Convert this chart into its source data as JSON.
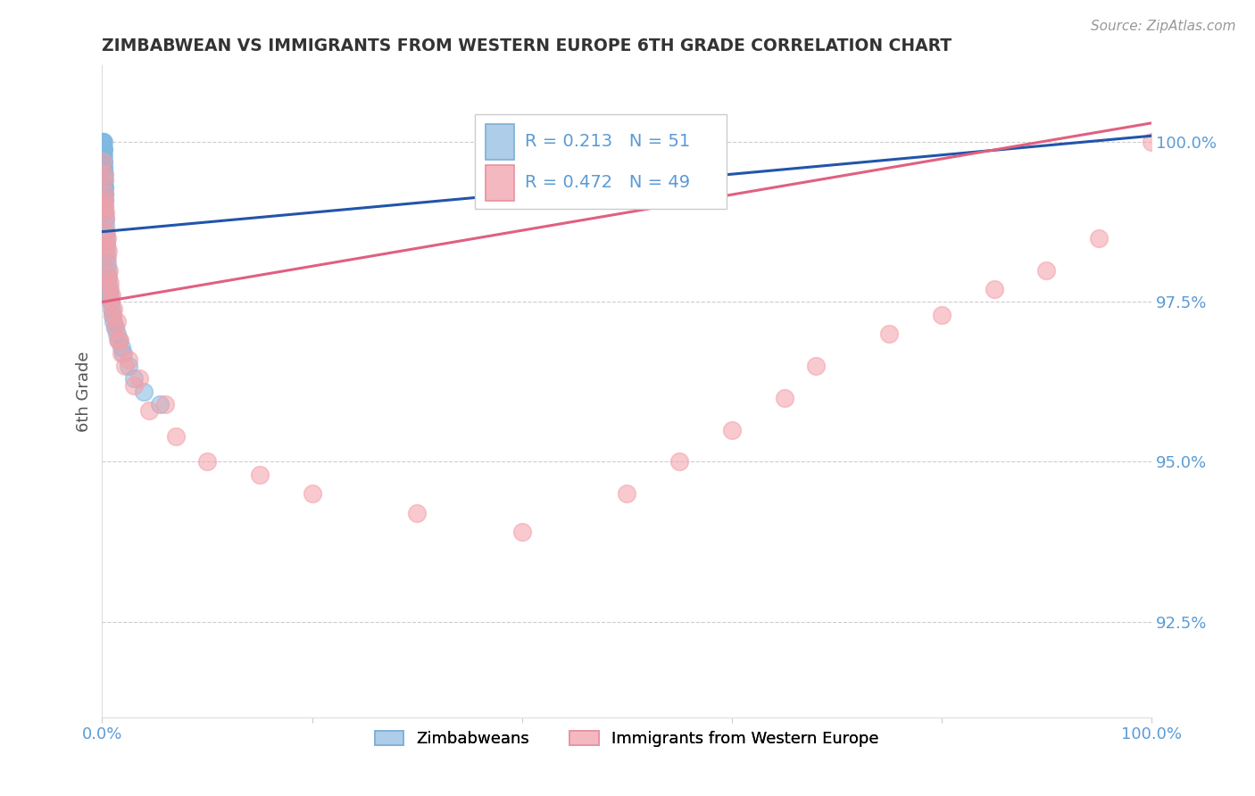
{
  "title": "ZIMBABWEAN VS IMMIGRANTS FROM WESTERN EUROPE 6TH GRADE CORRELATION CHART",
  "source": "Source: ZipAtlas.com",
  "ylabel_label": "6th Grade",
  "xlim": [
    0.0,
    100.0
  ],
  "ylim": [
    91.0,
    101.2
  ],
  "yticks": [
    92.5,
    95.0,
    97.5,
    100.0
  ],
  "ytick_labels": [
    "92.5%",
    "95.0%",
    "97.5%",
    "100.0%"
  ],
  "xtick_positions": [
    0.0,
    20.0,
    40.0,
    60.0,
    80.0,
    100.0
  ],
  "xtick_labels": [
    "0.0%",
    "",
    "",
    "",
    "",
    "100.0%"
  ],
  "blue_R": 0.213,
  "blue_N": 51,
  "pink_R": 0.472,
  "pink_N": 49,
  "legend_label_blue": "Zimbabweans",
  "legend_label_pink": "Immigrants from Western Europe",
  "blue_scatter_color": "#7fb8e0",
  "pink_scatter_color": "#f4a0a8",
  "blue_line_color": "#2255aa",
  "pink_line_color": "#e06080",
  "tick_color": "#5b9bd5",
  "title_color": "#333333",
  "ylabel_color": "#555555",
  "source_color": "#999999",
  "grid_color": "#c8c8c8",
  "background_color": "#ffffff",
  "blue_trend_y0": 98.6,
  "blue_trend_y1": 100.1,
  "pink_trend_y0": 97.5,
  "pink_trend_y1": 100.3,
  "blue_x": [
    0.05,
    0.07,
    0.08,
    0.09,
    0.1,
    0.1,
    0.11,
    0.12,
    0.13,
    0.14,
    0.15,
    0.15,
    0.16,
    0.17,
    0.18,
    0.18,
    0.19,
    0.2,
    0.21,
    0.22,
    0.23,
    0.24,
    0.25,
    0.26,
    0.28,
    0.3,
    0.32,
    0.35,
    0.38,
    0.4,
    0.43,
    0.46,
    0.5,
    0.55,
    0.6,
    0.65,
    0.7,
    0.8,
    0.9,
    1.0,
    1.1,
    1.2,
    1.4,
    1.6,
    1.8,
    2.0,
    2.5,
    3.0,
    4.0,
    5.5,
    0.06
  ],
  "blue_y": [
    100.0,
    99.9,
    100.0,
    99.8,
    99.9,
    100.0,
    99.7,
    99.6,
    99.8,
    99.5,
    99.7,
    99.9,
    99.4,
    99.6,
    99.3,
    99.5,
    99.2,
    99.4,
    99.1,
    99.3,
    99.0,
    99.2,
    98.9,
    99.1,
    98.8,
    98.7,
    98.6,
    98.5,
    98.4,
    98.3,
    98.2,
    98.1,
    98.0,
    97.9,
    97.8,
    97.7,
    97.6,
    97.5,
    97.4,
    97.3,
    97.2,
    97.1,
    97.0,
    96.9,
    96.8,
    96.7,
    96.5,
    96.3,
    96.1,
    95.9,
    100.0
  ],
  "pink_x": [
    0.08,
    0.12,
    0.18,
    0.25,
    0.3,
    0.35,
    0.4,
    0.5,
    0.6,
    0.7,
    0.8,
    1.0,
    1.2,
    1.5,
    1.8,
    2.2,
    3.0,
    4.5,
    7.0,
    10.0,
    15.0,
    20.0,
    30.0,
    40.0,
    50.0,
    55.0,
    60.0,
    65.0,
    68.0,
    75.0,
    80.0,
    85.0,
    90.0,
    95.0,
    100.0,
    0.15,
    0.22,
    0.28,
    0.45,
    0.55,
    0.65,
    0.75,
    0.9,
    1.1,
    1.4,
    1.7,
    2.5,
    3.5,
    6.0
  ],
  "pink_y": [
    99.7,
    99.5,
    99.2,
    99.0,
    98.8,
    98.6,
    98.4,
    98.2,
    97.9,
    97.7,
    97.5,
    97.3,
    97.1,
    96.9,
    96.7,
    96.5,
    96.2,
    95.8,
    95.4,
    95.0,
    94.8,
    94.5,
    94.2,
    93.9,
    94.5,
    95.0,
    95.5,
    96.0,
    96.5,
    97.0,
    97.3,
    97.7,
    98.0,
    98.5,
    100.0,
    99.4,
    99.1,
    98.9,
    98.5,
    98.3,
    98.0,
    97.8,
    97.6,
    97.4,
    97.2,
    96.9,
    96.6,
    96.3,
    95.9
  ]
}
